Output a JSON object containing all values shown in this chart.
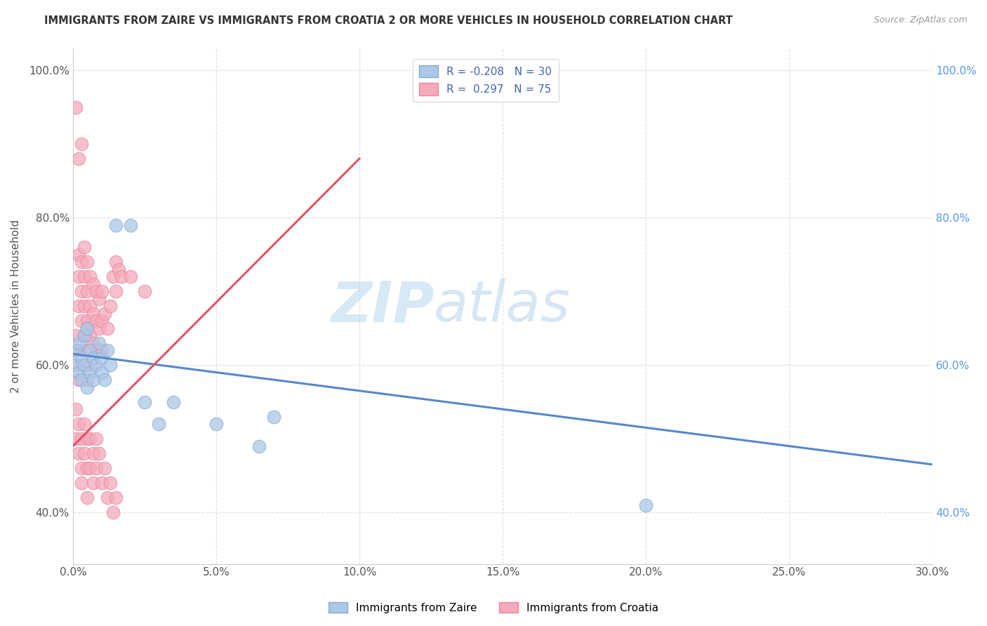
{
  "title": "IMMIGRANTS FROM ZAIRE VS IMMIGRANTS FROM CROATIA 2 OR MORE VEHICLES IN HOUSEHOLD CORRELATION CHART",
  "source": "Source: ZipAtlas.com",
  "ylabel": "2 or more Vehicles in Household",
  "legend_label1": "Immigrants from Zaire",
  "legend_label2": "Immigrants from Croatia",
  "R1": -0.208,
  "N1": 30,
  "R2": 0.297,
  "N2": 75,
  "xlim": [
    0.0,
    0.3
  ],
  "ylim": [
    0.33,
    1.03
  ],
  "xticks": [
    0.0,
    0.05,
    0.1,
    0.15,
    0.2,
    0.25,
    0.3
  ],
  "yticks": [
    0.4,
    0.6,
    0.8,
    1.0
  ],
  "color_zaire": "#aac8e8",
  "color_croatia": "#f5aabb",
  "color_zaire_edge": "#88aacc",
  "color_croatia_edge": "#e888a0",
  "trend_color_zaire": "#5588cc",
  "trend_color_croatia": "#dd5566",
  "background": "#ffffff",
  "watermark_zip": "ZIP",
  "watermark_atlas": "atlas",
  "watermark_color_zip": "#b8d8f0",
  "watermark_color_atlas": "#a8c8e8",
  "zaire_x": [
    0.001,
    0.001,
    0.002,
    0.002,
    0.003,
    0.003,
    0.004,
    0.004,
    0.005,
    0.005,
    0.006,
    0.006,
    0.007,
    0.007,
    0.008,
    0.009,
    0.01,
    0.01,
    0.011,
    0.012,
    0.013,
    0.015,
    0.02,
    0.025,
    0.03,
    0.035,
    0.05,
    0.065,
    0.2,
    0.07
  ],
  "zaire_y": [
    0.6,
    0.62,
    0.59,
    0.63,
    0.61,
    0.58,
    0.64,
    0.6,
    0.57,
    0.65,
    0.62,
    0.59,
    0.61,
    0.58,
    0.6,
    0.63,
    0.61,
    0.59,
    0.58,
    0.62,
    0.6,
    0.79,
    0.79,
    0.55,
    0.52,
    0.55,
    0.52,
    0.49,
    0.41,
    0.53
  ],
  "croatia_x": [
    0.001,
    0.001,
    0.001,
    0.001,
    0.002,
    0.002,
    0.002,
    0.002,
    0.002,
    0.003,
    0.003,
    0.003,
    0.003,
    0.003,
    0.004,
    0.004,
    0.004,
    0.004,
    0.004,
    0.005,
    0.005,
    0.005,
    0.005,
    0.005,
    0.005,
    0.006,
    0.006,
    0.006,
    0.006,
    0.007,
    0.007,
    0.007,
    0.008,
    0.008,
    0.008,
    0.009,
    0.009,
    0.01,
    0.01,
    0.01,
    0.011,
    0.012,
    0.013,
    0.014,
    0.015,
    0.015,
    0.016,
    0.017,
    0.02,
    0.025,
    0.001,
    0.001,
    0.002,
    0.002,
    0.003,
    0.003,
    0.003,
    0.004,
    0.004,
    0.005,
    0.005,
    0.005,
    0.006,
    0.006,
    0.007,
    0.007,
    0.008,
    0.008,
    0.009,
    0.01,
    0.011,
    0.012,
    0.013,
    0.014,
    0.015
  ],
  "croatia_y": [
    0.6,
    0.62,
    0.64,
    0.95,
    0.58,
    0.68,
    0.72,
    0.75,
    0.88,
    0.62,
    0.66,
    0.7,
    0.74,
    0.9,
    0.6,
    0.64,
    0.68,
    0.72,
    0.76,
    0.58,
    0.62,
    0.66,
    0.7,
    0.74,
    0.65,
    0.6,
    0.64,
    0.68,
    0.72,
    0.63,
    0.67,
    0.71,
    0.62,
    0.66,
    0.7,
    0.65,
    0.69,
    0.62,
    0.66,
    0.7,
    0.67,
    0.65,
    0.68,
    0.72,
    0.7,
    0.74,
    0.73,
    0.72,
    0.72,
    0.7,
    0.54,
    0.5,
    0.52,
    0.48,
    0.5,
    0.46,
    0.44,
    0.52,
    0.48,
    0.5,
    0.46,
    0.42,
    0.5,
    0.46,
    0.48,
    0.44,
    0.5,
    0.46,
    0.48,
    0.44,
    0.46,
    0.42,
    0.44,
    0.4,
    0.42
  ],
  "trend_zaire_x0": 0.0,
  "trend_zaire_y0": 0.615,
  "trend_zaire_x1": 0.3,
  "trend_zaire_y1": 0.465,
  "trend_croatia_x0": 0.0,
  "trend_croatia_y0": 0.49,
  "trend_croatia_x1": 0.1,
  "trend_croatia_y1": 0.88
}
